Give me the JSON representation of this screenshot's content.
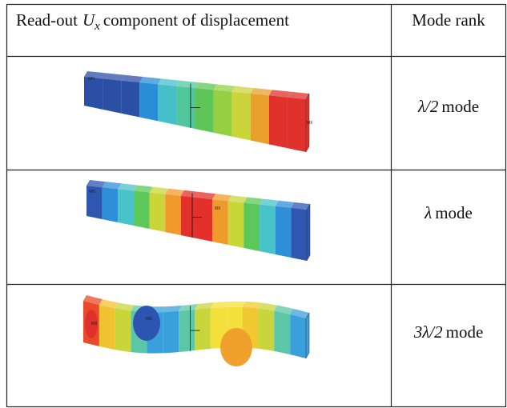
{
  "header": {
    "col1": {
      "prefix": "Read-out",
      "symbol": "U",
      "subscript": "x",
      "suffix": "component of displacement"
    },
    "col2": "Mode rank"
  },
  "rows": [
    {
      "rank": "λ/2",
      "label": "mode",
      "min_label": "MN",
      "max_label": "MX"
    },
    {
      "rank": "λ",
      "label": "mode",
      "min_label": "MN",
      "max_label": "MX"
    },
    {
      "rank": "3λ/2",
      "label": "mode",
      "min_label": "MN",
      "max_label": "MX"
    }
  ]
}
